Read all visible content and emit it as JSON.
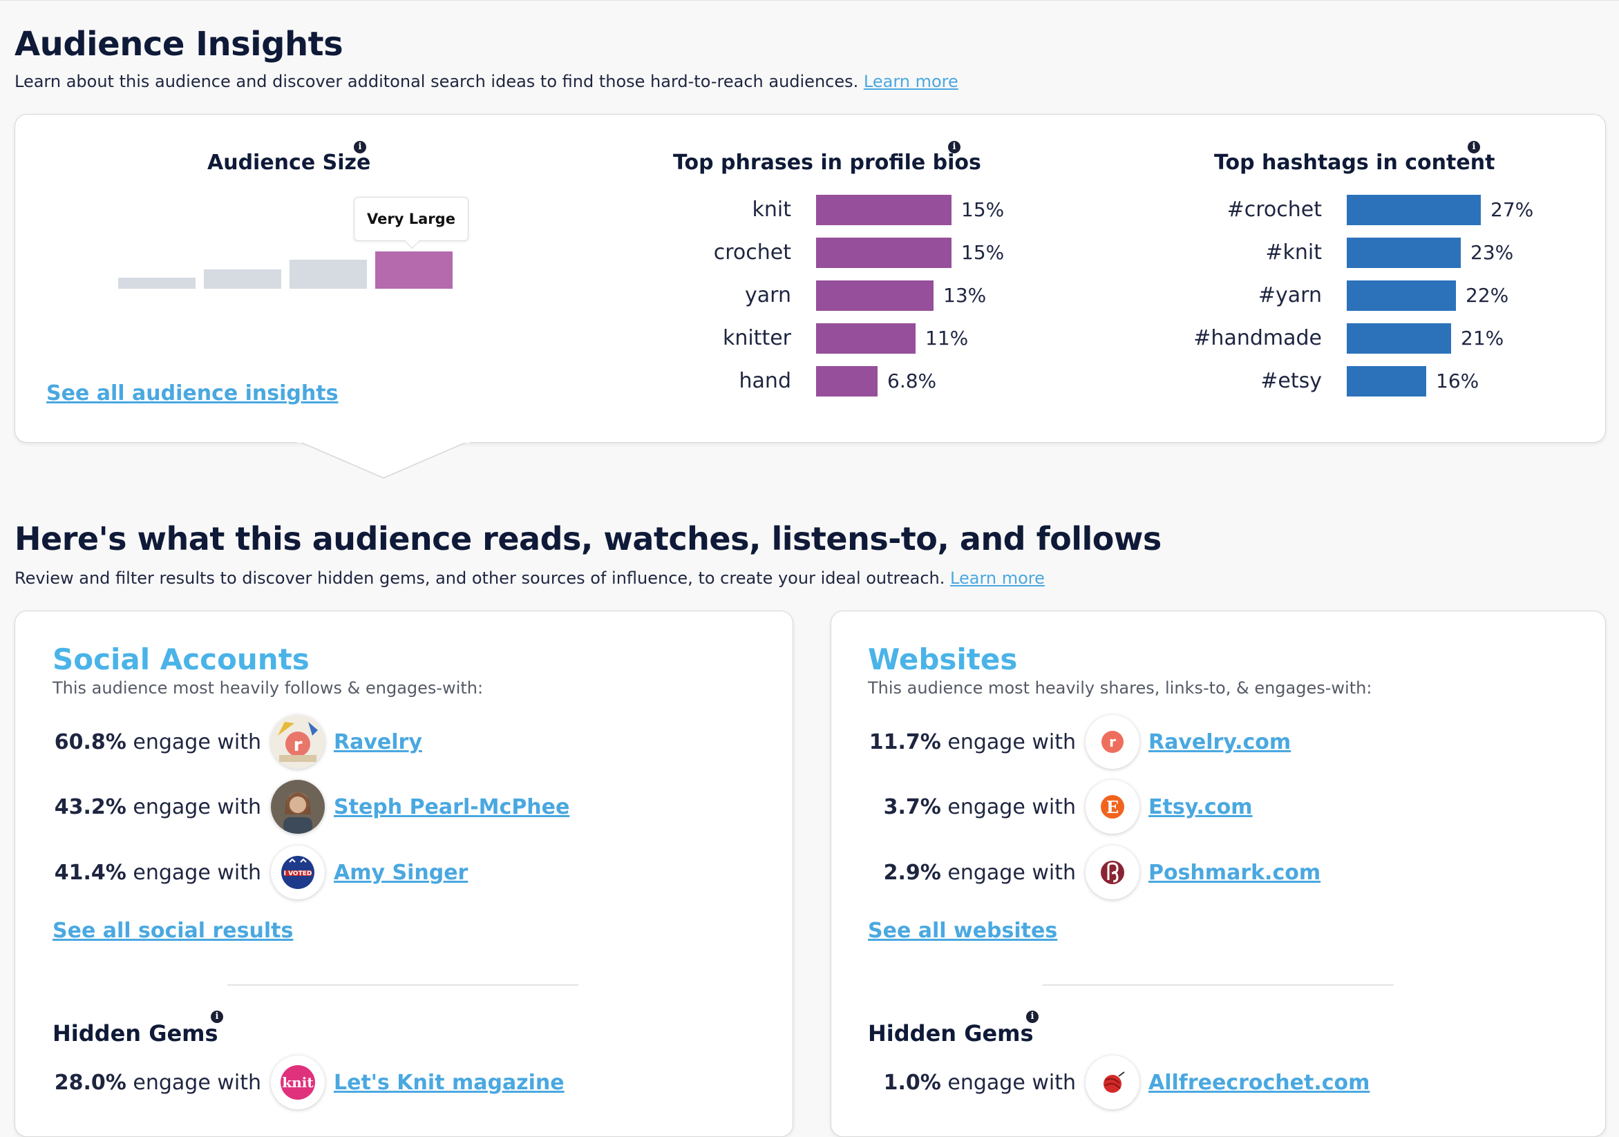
{
  "insights": {
    "title": "Audience Insights",
    "subtitle": "Learn about this audience and discover additonal search ideas to find those hard-to-reach audiences.",
    "learn_more": "Learn more",
    "audience_size": {
      "title": "Audience Size",
      "levels": 4,
      "active_level": 4,
      "tooltip": "Very Large",
      "link": "See all audience insights"
    },
    "phrases": {
      "title": "Top phrases in profile bios",
      "color": "#964f9a",
      "rows": [
        {
          "label": "knit",
          "value": 15,
          "display": "15%"
        },
        {
          "label": "crochet",
          "value": 15,
          "display": "15%"
        },
        {
          "label": "yarn",
          "value": 13,
          "display": "13%"
        },
        {
          "label": "knitter",
          "value": 11,
          "display": "11%"
        },
        {
          "label": "hand",
          "value": 6.8,
          "display": "6.8%"
        }
      ]
    },
    "hashtags": {
      "title": "Top hashtags in content",
      "color": "#2b72bb",
      "rows": [
        {
          "label": "#crochet",
          "value": 27,
          "display": "27%"
        },
        {
          "label": "#knit",
          "value": 23,
          "display": "23%"
        },
        {
          "label": "#yarn",
          "value": 22,
          "display": "22%"
        },
        {
          "label": "#handmade",
          "value": 21,
          "display": "21%"
        },
        {
          "label": "#etsy",
          "value": 16,
          "display": "16%"
        }
      ]
    }
  },
  "influence": {
    "title": "Here's what this audience reads, watches, listens-to, and follows",
    "subtitle": "Review and filter results to discover hidden gems, and other sources of influence, to create your ideal outreach.",
    "learn_more": "Learn more",
    "engage_text": "engage with",
    "social": {
      "title": "Social Accounts",
      "subtitle": "This audience most heavily follows & engages-with:",
      "rows": [
        {
          "pct": "60.8%",
          "name": "Ravelry",
          "icon": "ravelry-avatar-icon"
        },
        {
          "pct": "43.2%",
          "name": "Steph Pearl-McPhee",
          "icon": "person-avatar-icon"
        },
        {
          "pct": "41.4%",
          "name": "Amy Singer",
          "icon": "i-voted-avatar-icon"
        }
      ],
      "link": "See all social results",
      "gems_title": "Hidden Gems",
      "gems": [
        {
          "pct": "28.0%",
          "name": "Let's Knit magazine",
          "icon": "lets-knit-avatar-icon",
          "logo_text": "knit"
        }
      ]
    },
    "websites": {
      "title": "Websites",
      "subtitle": "This audience most heavily shares, links-to, & engages-with:",
      "rows": [
        {
          "pct": "11.7%",
          "name": "Ravelry.com",
          "icon": "ravelry-logo-icon"
        },
        {
          "pct": "3.7%",
          "name": "Etsy.com",
          "icon": "etsy-logo-icon"
        },
        {
          "pct": "2.9%",
          "name": "Poshmark.com",
          "icon": "poshmark-logo-icon"
        }
      ],
      "link": "See all websites",
      "gems_title": "Hidden Gems",
      "gems": [
        {
          "pct": "1.0%",
          "name": "Allfreecrochet.com",
          "icon": "yarn-ball-icon"
        }
      ]
    }
  },
  "info_icon_glyph": "i"
}
